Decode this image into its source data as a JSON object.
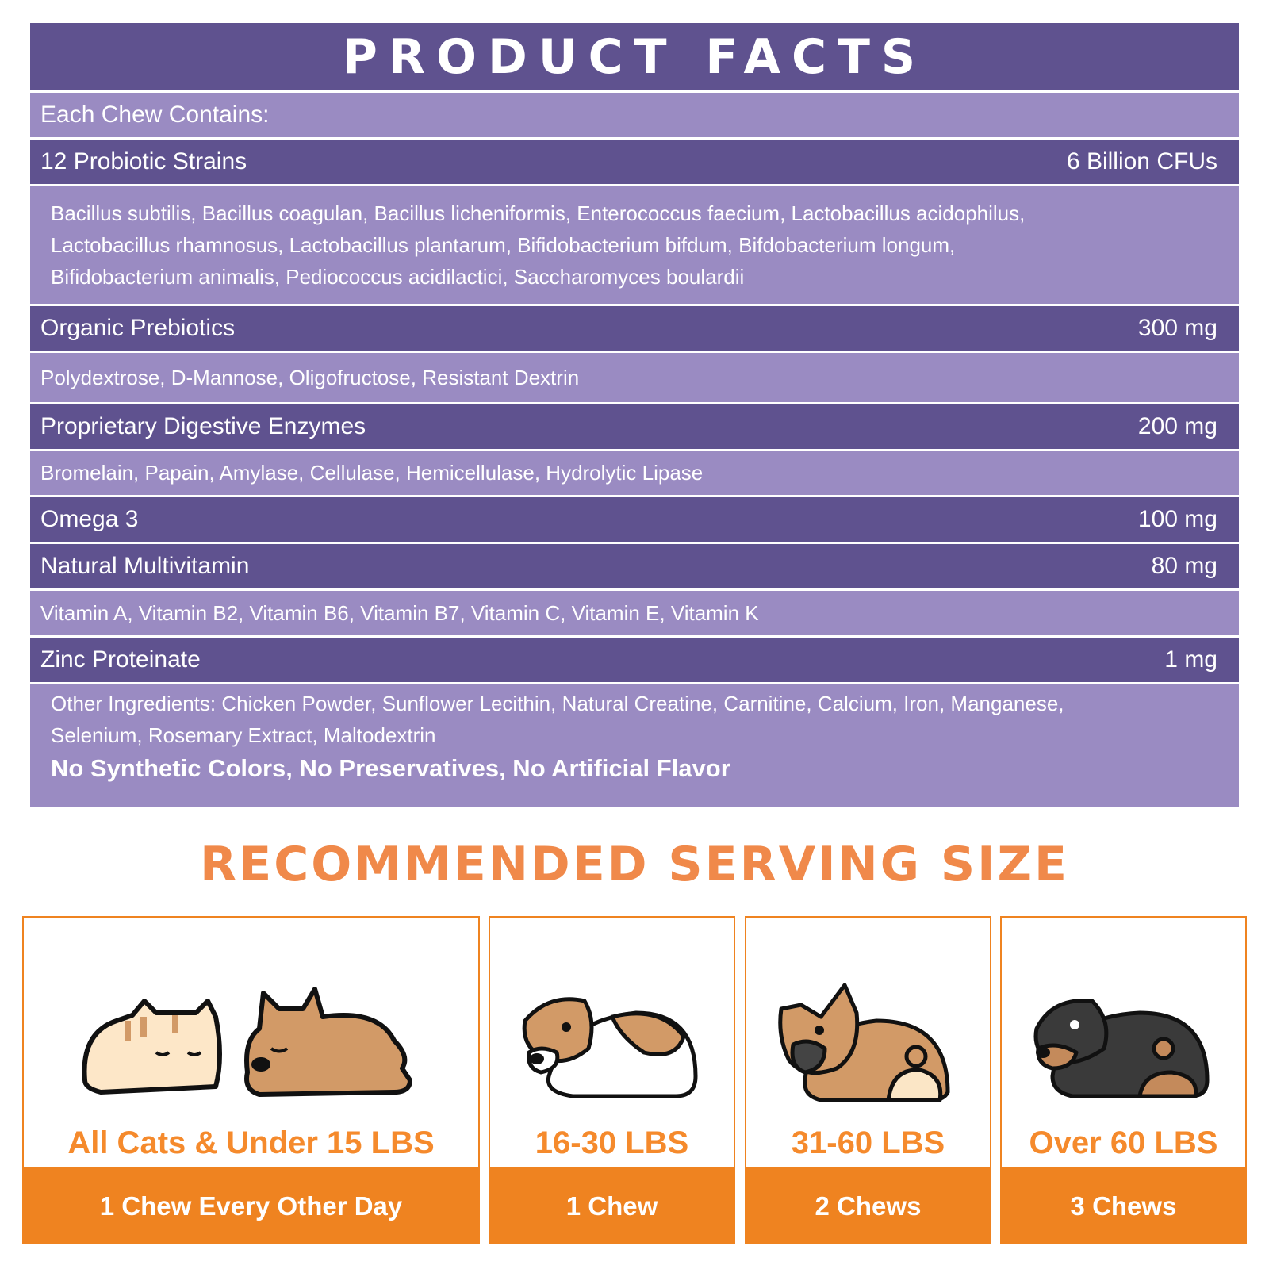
{
  "title": "PRODUCT FACTS",
  "intro": "Each Chew Contains:",
  "sections": [
    {
      "name": "12 Probiotic Strains",
      "amount": "6 Billion CFUs",
      "details": [
        "Bacillus subtilis, Bacillus coagulan, Bacillus licheniformis, Enterococcus faecium, Lactobacillus acidophilus,",
        "Lactobacillus rhamnosus, Lactobacillus plantarum, Bifidobacterium bifdum, Bifdobacterium longum,",
        "Bifidobacterium animalis, Pediococcus acidilactici, Saccharomyces boulardii"
      ]
    },
    {
      "name": "Organic Prebiotics",
      "amount": "300 mg",
      "details": [
        "Polydextrose, D-Mannose, Oligofructose, Resistant Dextrin"
      ]
    },
    {
      "name": "Proprietary Digestive Enzymes",
      "amount": "200 mg",
      "details": [
        "Bromelain, Papain, Amylase, Cellulase, Hemicellulase, Hydrolytic Lipase"
      ]
    },
    {
      "name": "Omega 3",
      "amount": "100 mg",
      "details": []
    },
    {
      "name": "Natural Multivitamin",
      "amount": "80 mg",
      "details": [
        "Vitamin A, Vitamin B2, Vitamin B6, Vitamin B7, Vitamin C, Vitamin E, Vitamin K"
      ]
    },
    {
      "name": "Zinc Proteinate",
      "amount": "1 mg",
      "details": []
    }
  ],
  "other_ingredients": [
    "Other Ingredients: Chicken Powder, Sunflower Lecithin, Natural Creatine, Carnitine, Calcium, Iron, Manganese,",
    "Selenium, Rosemary Extract, Maltodextrin"
  ],
  "claims": "No Synthetic Colors, No Preservatives, No Artificial Flavor",
  "serving_title": "RECOMMENDED SERVING SIZE",
  "servings": [
    {
      "weight": "All Cats & Under 15 LBS",
      "dose": "1 Chew Every Other Day",
      "icon": "sleeping-cat-and-corgi"
    },
    {
      "weight": "16-30 LBS",
      "dose": "1 Chew",
      "icon": "beagle"
    },
    {
      "weight": "31-60 LBS",
      "dose": "2 Chews",
      "icon": "french-bulldog"
    },
    {
      "weight": "Over 60 LBS",
      "dose": "3 Chews",
      "icon": "rottweiler"
    }
  ],
  "colors": {
    "dark_purple": "#5f528f",
    "light_purple": "#9a8bc2",
    "orange": "#ef8320",
    "title_orange": "#f0894a"
  }
}
